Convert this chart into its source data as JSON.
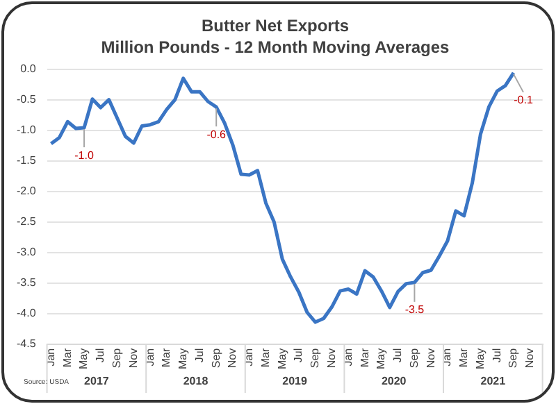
{
  "chart_data": {
    "type": "line",
    "title": "Butter Net Exports",
    "subtitle": "Million Pounds - 12 Month Moving Averages",
    "categories": [
      "Jan",
      null,
      "Mar",
      null,
      "May",
      null,
      "Jul",
      null,
      "Sep",
      null,
      "Nov",
      null,
      "Jan",
      null,
      "Mar",
      null,
      "May",
      null,
      "Jul",
      null,
      "Sep",
      null,
      "Nov",
      null,
      "Jan",
      null,
      "Mar",
      null,
      "May",
      null,
      "Jul",
      null,
      "Sep",
      null,
      "Nov",
      null,
      "Jan",
      null,
      "Mar",
      null,
      "May",
      null,
      "Jul",
      null,
      "Sep",
      null,
      "Nov",
      null,
      "Jan",
      null,
      "Mar",
      null,
      "May",
      null,
      "Jul",
      null,
      "Sep",
      null,
      "Nov",
      null
    ],
    "series": [
      {
        "color": "#3a75c4",
        "values": [
          -1.22,
          -1.12,
          -0.86,
          -0.97,
          -0.96,
          -0.49,
          -0.63,
          -0.5,
          -0.8,
          -1.1,
          -1.21,
          -0.93,
          -0.91,
          -0.86,
          -0.66,
          -0.5,
          -0.15,
          -0.37,
          -0.37,
          -0.53,
          -0.62,
          -0.88,
          -1.24,
          -1.72,
          -1.73,
          -1.66,
          -2.19,
          -2.5,
          -3.11,
          -3.4,
          -3.65,
          -3.98,
          -4.14,
          -4.08,
          -3.89,
          -3.63,
          -3.6,
          -3.68,
          -3.3,
          -3.4,
          -3.63,
          -3.9,
          -3.64,
          -3.51,
          -3.49,
          -3.33,
          -3.29,
          -3.06,
          -2.81,
          -2.32,
          -2.4,
          -1.86,
          -1.06,
          -0.62,
          -0.36,
          -0.27,
          -0.06,
          null,
          null,
          null
        ],
        "value_labels": [
          null,
          null,
          null,
          null,
          "-1.0",
          null,
          null,
          null,
          null,
          null,
          null,
          null,
          null,
          null,
          null,
          null,
          null,
          null,
          null,
          null,
          "-0.6",
          null,
          null,
          null,
          null,
          null,
          null,
          null,
          null,
          null,
          null,
          null,
          null,
          null,
          null,
          null,
          null,
          null,
          null,
          null,
          null,
          null,
          null,
          null,
          "-3.5",
          null,
          null,
          null,
          null,
          null,
          null,
          null,
          null,
          null,
          null,
          null,
          "-0.1",
          null,
          null,
          null
        ]
      }
    ],
    "ylim": [
      -4.5,
      0
    ],
    "yticks": [
      {
        "value": 0,
        "label": "0.0"
      },
      {
        "value": -0.5,
        "label": "-0.5"
      },
      {
        "value": -1,
        "label": "-1.0"
      },
      {
        "value": -1.5,
        "label": "-1.5"
      },
      {
        "value": -2,
        "label": "-2.0"
      },
      {
        "value": -2.5,
        "label": "-2.5"
      },
      {
        "value": -3,
        "label": "-3.0"
      },
      {
        "value": -3.5,
        "label": "-3.5"
      },
      {
        "value": -4,
        "label": "-4.0"
      },
      {
        "value": -4.5,
        "label": "-4.5"
      }
    ],
    "grid": "y",
    "legend": false,
    "marker": "none",
    "line_style": "solid",
    "annotations": [
      "2017",
      "2018",
      "2019",
      "2020",
      "2021",
      "Source: USDA"
    ]
  }
}
